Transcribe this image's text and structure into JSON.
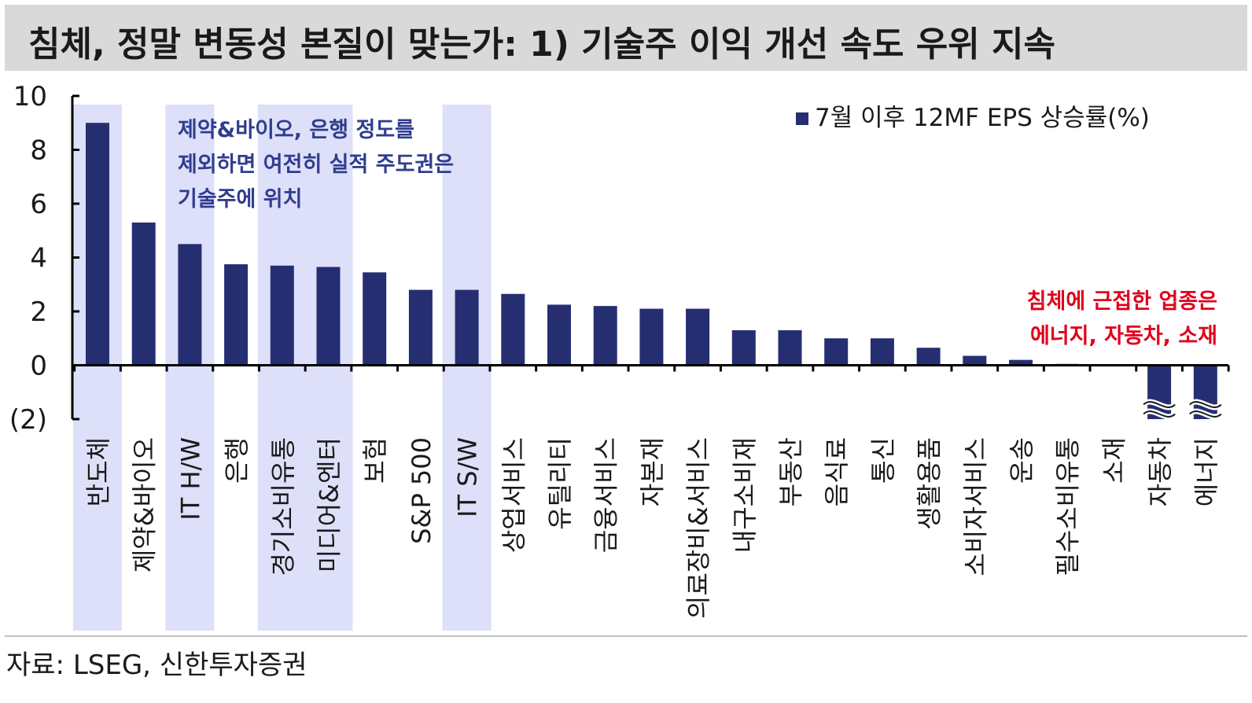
{
  "title": "침체, 정말 변동성 본질이 맞는가: 1) 기술주 이익 개선 속도 우위 지속",
  "source": "자료: LSEG, 신한투자증권",
  "colors": {
    "bar": "#262e72",
    "highlight": "#dde0f8",
    "annotation_blue": "#2f3d8f",
    "annotation_red": "#e0001b"
  },
  "annotations": {
    "blue_lines": [
      "제약&바이오, 은행 정도를",
      "제외하면 여전히 실적 주도권은",
      "기술주에 위치"
    ],
    "red_lines": [
      "침체에 근접한 업종은",
      "에너지, 자동차, 소재"
    ]
  },
  "chart_data": {
    "type": "bar",
    "title": "",
    "xlabel": "",
    "ylabel": "",
    "ylim": [
      -2,
      10
    ],
    "yticks": [
      10,
      8,
      6,
      4,
      2,
      0,
      -2
    ],
    "ytick_labels": [
      "10",
      "8",
      "6",
      "4",
      "2",
      "0",
      "(2)"
    ],
    "legend_position": "top-right",
    "grid": false,
    "categories": [
      "반도체",
      "제약&바이오",
      "IT H/W",
      "은행",
      "경기소비유통",
      "미디어&엔터",
      "보험",
      "S&P 500",
      "IT S/W",
      "상업서비스",
      "유틸리티",
      "금융서비스",
      "자본재",
      "의료장비&서비스",
      "내구소비재",
      "부동산",
      "음식료",
      "통신",
      "생활용품",
      "소비자서비스",
      "운송",
      "필수소비유통",
      "소재",
      "자동차",
      "에너지"
    ],
    "highlighted_categories": [
      "반도체",
      "IT H/W",
      "경기소비유통",
      "미디어&엔터",
      "IT S/W"
    ],
    "axis_break_categories": [
      "자동차",
      "에너지"
    ],
    "series": [
      {
        "name": "7월 이후 12MF EPS 상승률(%)",
        "values": [
          9.0,
          5.3,
          4.5,
          3.75,
          3.7,
          3.65,
          3.45,
          2.8,
          2.8,
          2.65,
          2.25,
          2.2,
          2.1,
          2.1,
          1.3,
          1.3,
          1.0,
          1.0,
          0.65,
          0.35,
          0.2,
          0.05,
          -0.02,
          -2.0,
          -2.0
        ]
      }
    ]
  }
}
